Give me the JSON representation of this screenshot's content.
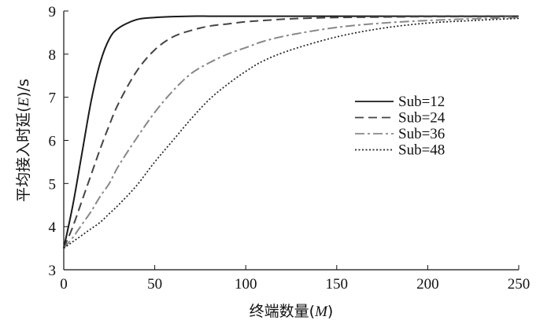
{
  "chart_data": {
    "type": "line",
    "xlabel": {
      "prefix": "终端数量(",
      "var": "M",
      "suffix": ")"
    },
    "ylabel": {
      "prefix": "平均接入时延(",
      "var": "E",
      "suffix": ")/s"
    },
    "xlim": [
      0,
      250
    ],
    "ylim": [
      3,
      9
    ],
    "xticks": [
      "0",
      "50",
      "100",
      "150",
      "200",
      "250"
    ],
    "yticks": [
      "3",
      "4",
      "5",
      "6",
      "7",
      "8",
      "9"
    ],
    "grid": false,
    "legend_position": "center-right",
    "x": [
      0,
      5,
      10,
      15,
      20,
      25,
      30,
      40,
      50,
      60,
      70,
      80,
      90,
      100,
      110,
      125,
      150,
      175,
      200,
      225,
      250
    ],
    "series": [
      {
        "name": "Sub=12",
        "style": "solid",
        "color": "#1a1a1a",
        "values": [
          3.5,
          4.5,
          5.7,
          6.9,
          7.8,
          8.35,
          8.6,
          8.8,
          8.85,
          8.87,
          8.88,
          8.88,
          8.88,
          8.88,
          8.88,
          8.88,
          8.88,
          8.88,
          8.88,
          8.88,
          8.88
        ]
      },
      {
        "name": "Sub=24",
        "style": "dashed",
        "color": "#444444",
        "values": [
          3.5,
          4.0,
          4.6,
          5.2,
          5.8,
          6.35,
          6.85,
          7.6,
          8.1,
          8.4,
          8.55,
          8.65,
          8.7,
          8.75,
          8.78,
          8.82,
          8.85,
          8.86,
          8.87,
          8.87,
          8.88
        ]
      },
      {
        "name": "Sub=36",
        "style": "dashdot",
        "color": "#888888",
        "values": [
          3.5,
          3.75,
          4.05,
          4.35,
          4.7,
          5.0,
          5.4,
          6.05,
          6.65,
          7.15,
          7.55,
          7.8,
          8.0,
          8.15,
          8.3,
          8.45,
          8.62,
          8.72,
          8.78,
          8.82,
          8.85
        ]
      },
      {
        "name": "Sub=48",
        "style": "dotted",
        "color": "#222222",
        "values": [
          3.5,
          3.65,
          3.8,
          3.95,
          4.1,
          4.3,
          4.5,
          4.95,
          5.5,
          6.0,
          6.5,
          6.95,
          7.3,
          7.6,
          7.85,
          8.1,
          8.4,
          8.6,
          8.72,
          8.78,
          8.83
        ]
      }
    ]
  }
}
